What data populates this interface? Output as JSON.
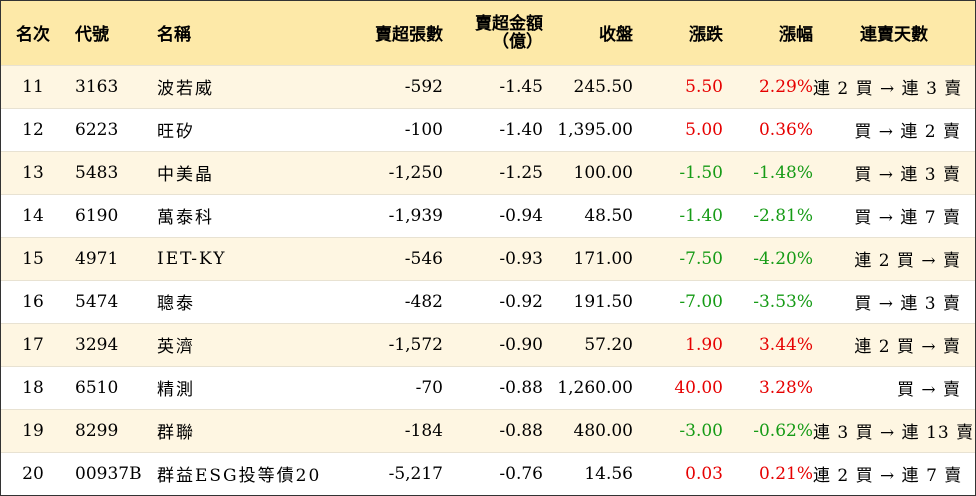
{
  "headers": {
    "rank": "名次",
    "code": "代號",
    "name": "名稱",
    "volume": "賣超張數",
    "amount_line1": "賣超金額",
    "amount_line2": "（億）",
    "close": "收盤",
    "change": "漲跌",
    "pct": "漲幅",
    "streak": "連賣天數"
  },
  "colors": {
    "header_bg": "#fde9a8",
    "odd_row_bg": "#fef6e2",
    "up": "#e60000",
    "down": "#169b16"
  },
  "rows": [
    {
      "rank": "11",
      "code": "3163",
      "name": "波若威",
      "volume": "-592",
      "amount": "-1.45",
      "close": "245.50",
      "change": "5.50",
      "pct": "2.29%",
      "dir": "up",
      "streak": "連 2 買 → 連 3 賣"
    },
    {
      "rank": "12",
      "code": "6223",
      "name": "旺矽",
      "volume": "-100",
      "amount": "-1.40",
      "close": "1,395.00",
      "change": "5.00",
      "pct": "0.36%",
      "dir": "up",
      "streak": "買 → 連 2 賣"
    },
    {
      "rank": "13",
      "code": "5483",
      "name": "中美晶",
      "volume": "-1,250",
      "amount": "-1.25",
      "close": "100.00",
      "change": "-1.50",
      "pct": "-1.48%",
      "dir": "down",
      "streak": "買 → 連 3 賣"
    },
    {
      "rank": "14",
      "code": "6190",
      "name": "萬泰科",
      "volume": "-1,939",
      "amount": "-0.94",
      "close": "48.50",
      "change": "-1.40",
      "pct": "-2.81%",
      "dir": "down",
      "streak": "買 → 連 7 賣"
    },
    {
      "rank": "15",
      "code": "4971",
      "name": "IET-KY",
      "volume": "-546",
      "amount": "-0.93",
      "close": "171.00",
      "change": "-7.50",
      "pct": "-4.20%",
      "dir": "down",
      "streak": "連 2 買 → 賣"
    },
    {
      "rank": "16",
      "code": "5474",
      "name": "聰泰",
      "volume": "-482",
      "amount": "-0.92",
      "close": "191.50",
      "change": "-7.00",
      "pct": "-3.53%",
      "dir": "down",
      "streak": "買 → 連 3 賣"
    },
    {
      "rank": "17",
      "code": "3294",
      "name": "英濟",
      "volume": "-1,572",
      "amount": "-0.90",
      "close": "57.20",
      "change": "1.90",
      "pct": "3.44%",
      "dir": "up",
      "streak": "連 2 買 → 賣"
    },
    {
      "rank": "18",
      "code": "6510",
      "name": "精測",
      "volume": "-70",
      "amount": "-0.88",
      "close": "1,260.00",
      "change": "40.00",
      "pct": "3.28%",
      "dir": "up",
      "streak": "買 → 賣"
    },
    {
      "rank": "19",
      "code": "8299",
      "name": "群聯",
      "volume": "-184",
      "amount": "-0.88",
      "close": "480.00",
      "change": "-3.00",
      "pct": "-0.62%",
      "dir": "down",
      "streak": "連 3 買 → 連 13 賣"
    },
    {
      "rank": "20",
      "code": "00937B",
      "name": "群益ESG投等債20",
      "volume": "-5,217",
      "amount": "-0.76",
      "close": "14.56",
      "change": "0.03",
      "pct": "0.21%",
      "dir": "up",
      "streak": "連 2 買 → 連 7 賣"
    }
  ]
}
